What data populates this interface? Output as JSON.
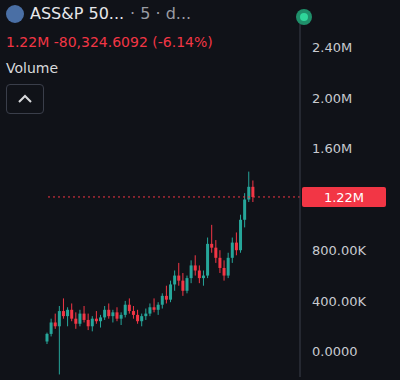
{
  "chart_data": {
    "type": "candlestick",
    "title": "ASS&P 50...",
    "subtitle": "· 5 · d...",
    "annotations": [
      "1.22M",
      "-80,324.6092 (-6.14%)",
      "Volume"
    ],
    "categories": [
      null,
      null,
      null,
      null,
      null,
      null,
      null,
      null,
      null,
      null,
      null,
      null,
      null,
      null,
      null,
      null,
      null,
      null,
      null,
      null,
      null,
      null,
      null,
      null,
      null,
      null,
      null,
      null,
      null,
      null,
      null,
      null,
      null,
      null,
      null,
      null,
      null,
      null,
      null,
      null,
      null,
      null,
      null,
      null,
      null,
      null,
      null,
      null,
      null,
      null,
      null
    ],
    "open": [
      80000,
      140000,
      230000,
      200000,
      320000,
      280000,
      330000,
      260000,
      220000,
      300000,
      250000,
      200000,
      260000,
      240000,
      270000,
      330000,
      280000,
      310000,
      260000,
      290000,
      370000,
      320000,
      290000,
      240000,
      280000,
      300000,
      350000,
      330000,
      370000,
      440000,
      410000,
      530000,
      600000,
      560000,
      480000,
      580000,
      680000,
      640000,
      580000,
      600000,
      850000,
      820000,
      740000,
      660000,
      600000,
      740000,
      860000,
      800000,
      1040000,
      1200000,
      1300000
    ],
    "high": [
      150000,
      260000,
      300000,
      360000,
      420000,
      350000,
      380000,
      310000,
      330000,
      360000,
      300000,
      280000,
      320000,
      290000,
      360000,
      380000,
      330000,
      350000,
      310000,
      400000,
      420000,
      360000,
      330000,
      300000,
      340000,
      380000,
      420000,
      390000,
      460000,
      520000,
      560000,
      640000,
      700000,
      620000,
      600000,
      720000,
      760000,
      680000,
      640000,
      900000,
      1000000,
      880000,
      800000,
      720000,
      780000,
      900000,
      940000,
      1080000,
      1250000,
      1420000,
      1350000
    ],
    "low": [
      60000,
      120000,
      180000,
      -180000,
      260000,
      200000,
      240000,
      180000,
      200000,
      230000,
      170000,
      160000,
      220000,
      190000,
      250000,
      260000,
      230000,
      240000,
      210000,
      270000,
      300000,
      260000,
      220000,
      200000,
      250000,
      280000,
      310000,
      290000,
      340000,
      380000,
      390000,
      480000,
      520000,
      440000,
      460000,
      540000,
      600000,
      540000,
      520000,
      580000,
      780000,
      700000,
      620000,
      560000,
      580000,
      700000,
      760000,
      780000,
      980000,
      1180000,
      1180000
    ],
    "close": [
      140000,
      230000,
      200000,
      320000,
      280000,
      330000,
      260000,
      220000,
      300000,
      250000,
      200000,
      260000,
      240000,
      270000,
      330000,
      280000,
      310000,
      260000,
      290000,
      370000,
      320000,
      290000,
      240000,
      280000,
      300000,
      350000,
      330000,
      370000,
      440000,
      410000,
      530000,
      600000,
      560000,
      480000,
      580000,
      680000,
      640000,
      580000,
      600000,
      850000,
      820000,
      740000,
      660000,
      600000,
      740000,
      860000,
      800000,
      1040000,
      1200000,
      1300000,
      1220000
    ],
    "colors": [
      "#26a69a",
      "#26a69a",
      "#f23645",
      "#26a69a",
      "#f23645",
      "#26a69a",
      "#f23645",
      "#f23645",
      "#26a69a",
      "#f23645",
      "#f23645",
      "#26a69a",
      "#f23645",
      "#26a69a",
      "#26a69a",
      "#f23645",
      "#26a69a",
      "#f23645",
      "#26a69a",
      "#26a69a",
      "#f23645",
      "#f23645",
      "#f23645",
      "#26a69a",
      "#26a69a",
      "#26a69a",
      "#f23645",
      "#26a69a",
      "#26a69a",
      "#f23645",
      "#26a69a",
      "#26a69a",
      "#f23645",
      "#f23645",
      "#26a69a",
      "#26a69a",
      "#f23645",
      "#f23645",
      "#26a69a",
      "#26a69a",
      "#f23645",
      "#f23645",
      "#f23645",
      "#f23645",
      "#26a69a",
      "#26a69a",
      "#f23645",
      "#26a69a",
      "#26a69a",
      "#26a69a",
      "#f23645"
    ],
    "ylim": [
      -200000,
      2600000
    ],
    "yticks": [
      {
        "value": 0,
        "label": "0.0000"
      },
      {
        "value": 400000,
        "label": "400.00K"
      },
      {
        "value": 800000,
        "label": "800.00K"
      },
      {
        "value": 1600000,
        "label": "1.60M"
      },
      {
        "value": 2000000,
        "label": "2.00M"
      },
      {
        "value": 2400000,
        "label": "2.40M"
      }
    ],
    "reference_line": {
      "value": 1220000,
      "label": "1.22M"
    },
    "tick_labels": "y",
    "grid": false
  }
}
